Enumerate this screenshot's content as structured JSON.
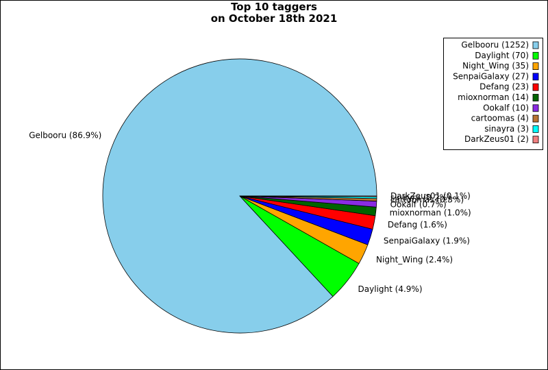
{
  "chart_data": {
    "type": "pie",
    "title": "Top 10 taggers\non October 18th 2021",
    "categories": [
      "Gelbooru (1252)",
      "Daylight (70)",
      "Night_Wing (35)",
      "SenpaiGalaxy (27)",
      "Defang (23)",
      "mioxnorman (14)",
      "Ookalf (10)",
      "cartoomas (4)",
      "sinayra (3)",
      "DarkZeus01 (2)"
    ],
    "values": [
      86.9,
      4.9,
      2.4,
      1.9,
      1.6,
      1.0,
      0.7,
      0.3,
      0.2,
      0.1
    ],
    "value_labels": [
      "Gelbooru (86.9%)",
      "Daylight (4.9%)",
      "Night_Wing (2.4%)",
      "SenpaiGalaxy (1.9%)",
      "Defang (1.6%)",
      "mioxnorman (1.0%)",
      "Ookalf (0.7%)",
      "cartoomas (0.3%)",
      "sinayra (0.2%)",
      "DarkZeus01 (0.1%)"
    ],
    "colors": [
      "#87ceeb",
      "#00ff00",
      "#ffa500",
      "#0000ff",
      "#ff0000",
      "#006400",
      "#8a2be2",
      "#b87333",
      "#00ffff",
      "#f08080"
    ],
    "legend": "upper right"
  }
}
